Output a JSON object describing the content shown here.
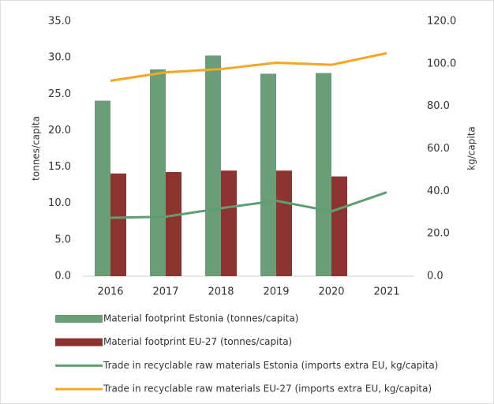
{
  "chart_data": {
    "type": "bar-line",
    "categories": [
      "2016",
      "2017",
      "2018",
      "2019",
      "2020",
      "2021"
    ],
    "series": [
      {
        "name": "Material footprint Estonia (tonnes/capita)",
        "type": "bar",
        "color": "#6a9e78",
        "values": [
          24.1,
          28.4,
          30.3,
          27.8,
          27.9,
          null
        ]
      },
      {
        "name": "Material footprint EU-27 (tonnes/capita)",
        "type": "bar",
        "color": "#8e3430",
        "values": [
          14.1,
          14.3,
          14.5,
          14.5,
          13.7,
          null
        ]
      },
      {
        "name": "Trade in recyclable raw materials Estonia (imports extra EU, kg/capita)",
        "type": "line",
        "axis": "y2",
        "color": "#5f9e72",
        "values": [
          27.5,
          28.0,
          32.0,
          35.5,
          30.5,
          39.5
        ]
      },
      {
        "name": "Trade in recyclable raw materials EU-27 (imports extra EU, kg/capita)",
        "type": "line",
        "axis": "y2",
        "color": "#f5a623",
        "values": [
          92.0,
          96.0,
          97.5,
          100.5,
          99.5,
          105.0
        ]
      }
    ],
    "ylabel": "tonnes/capita",
    "y2label": "kg/capita",
    "ylim": [
      0,
      35
    ],
    "yticks": [
      {
        "value": 0,
        "label": "0.0"
      },
      {
        "value": 5,
        "label": "5.0"
      },
      {
        "value": 10,
        "label": "10.0"
      },
      {
        "value": 15,
        "label": "15.0"
      },
      {
        "value": 20,
        "label": "20.0"
      },
      {
        "value": 25,
        "label": "25.0"
      },
      {
        "value": 30,
        "label": "30.0"
      },
      {
        "value": 35,
        "label": "35.0"
      }
    ],
    "y2lim": [
      0,
      120
    ],
    "y2ticks": [
      {
        "value": 0,
        "label": "0.0"
      },
      {
        "value": 20,
        "label": "20.0"
      },
      {
        "value": 40,
        "label": "40.0"
      },
      {
        "value": 60,
        "label": "60.0"
      },
      {
        "value": 80,
        "label": "80.0"
      },
      {
        "value": 100,
        "label": "100.0"
      },
      {
        "value": 120,
        "label": "120.0"
      }
    ],
    "legend": "bottom"
  }
}
